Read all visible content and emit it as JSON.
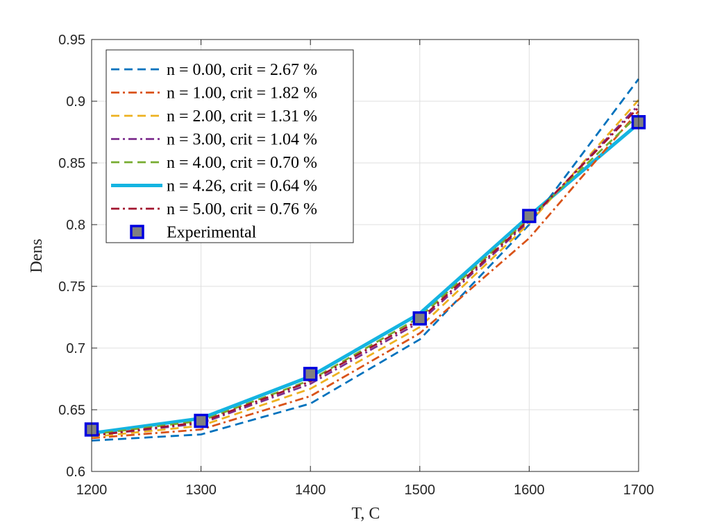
{
  "chart_data": {
    "type": "line",
    "title": "",
    "xlabel": "T, C",
    "ylabel": "Dens",
    "xlim": [
      1200,
      1700
    ],
    "ylim": [
      0.6,
      0.95
    ],
    "xticks": [
      1200,
      1300,
      1400,
      1500,
      1600,
      1700
    ],
    "yticks": [
      0.6,
      0.65,
      0.7,
      0.75,
      0.8,
      0.85,
      0.9,
      0.95
    ],
    "ytick_labels": [
      "0.6",
      "0.65",
      "0.7",
      "0.75",
      "0.8",
      "0.85",
      "0.9",
      "0.95"
    ],
    "grid": true,
    "legend_position": "top-left",
    "x": [
      1200,
      1300,
      1400,
      1500,
      1600,
      1700
    ],
    "series": [
      {
        "name": "n = 0.00, crit = 2.67 %",
        "color": "#0072BD",
        "dash": "dashed",
        "values": [
          0.625,
          0.63,
          0.655,
          0.707,
          0.8,
          0.918
        ]
      },
      {
        "name": "n = 1.00, crit = 1.82 %",
        "color": "#D95319",
        "dash": "dashdot",
        "values": [
          0.627,
          0.634,
          0.661,
          0.712,
          0.789,
          0.892
        ]
      },
      {
        "name": "n = 2.00, crit = 1.31 %",
        "color": "#EDB120",
        "dash": "dashed",
        "values": [
          0.628,
          0.637,
          0.667,
          0.717,
          0.801,
          0.901
        ]
      },
      {
        "name": "n = 3.00, crit = 1.04 %",
        "color": "#7E2F8E",
        "dash": "dashdot",
        "values": [
          0.629,
          0.639,
          0.671,
          0.721,
          0.803,
          0.897
        ]
      },
      {
        "name": "n = 4.00, crit = 0.70 %",
        "color": "#77AC30",
        "dash": "dashed",
        "values": [
          0.63,
          0.641,
          0.674,
          0.725,
          0.805,
          0.889
        ]
      },
      {
        "name": "n = 4.26, crit = 0.64 %",
        "color": "#14B4E1",
        "dash": "solid",
        "values": [
          0.631,
          0.643,
          0.677,
          0.728,
          0.807,
          0.882
        ]
      },
      {
        "name": "n = 5.00, crit = 0.76 %",
        "color": "#A2142F",
        "dash": "dashdot",
        "values": [
          0.629,
          0.64,
          0.673,
          0.723,
          0.804,
          0.895
        ]
      }
    ],
    "experimental": {
      "name": "Experimental",
      "marker_fill": "#808080",
      "marker_edge": "#0000E0",
      "values": [
        0.634,
        0.641,
        0.679,
        0.724,
        0.807,
        0.883
      ]
    }
  }
}
